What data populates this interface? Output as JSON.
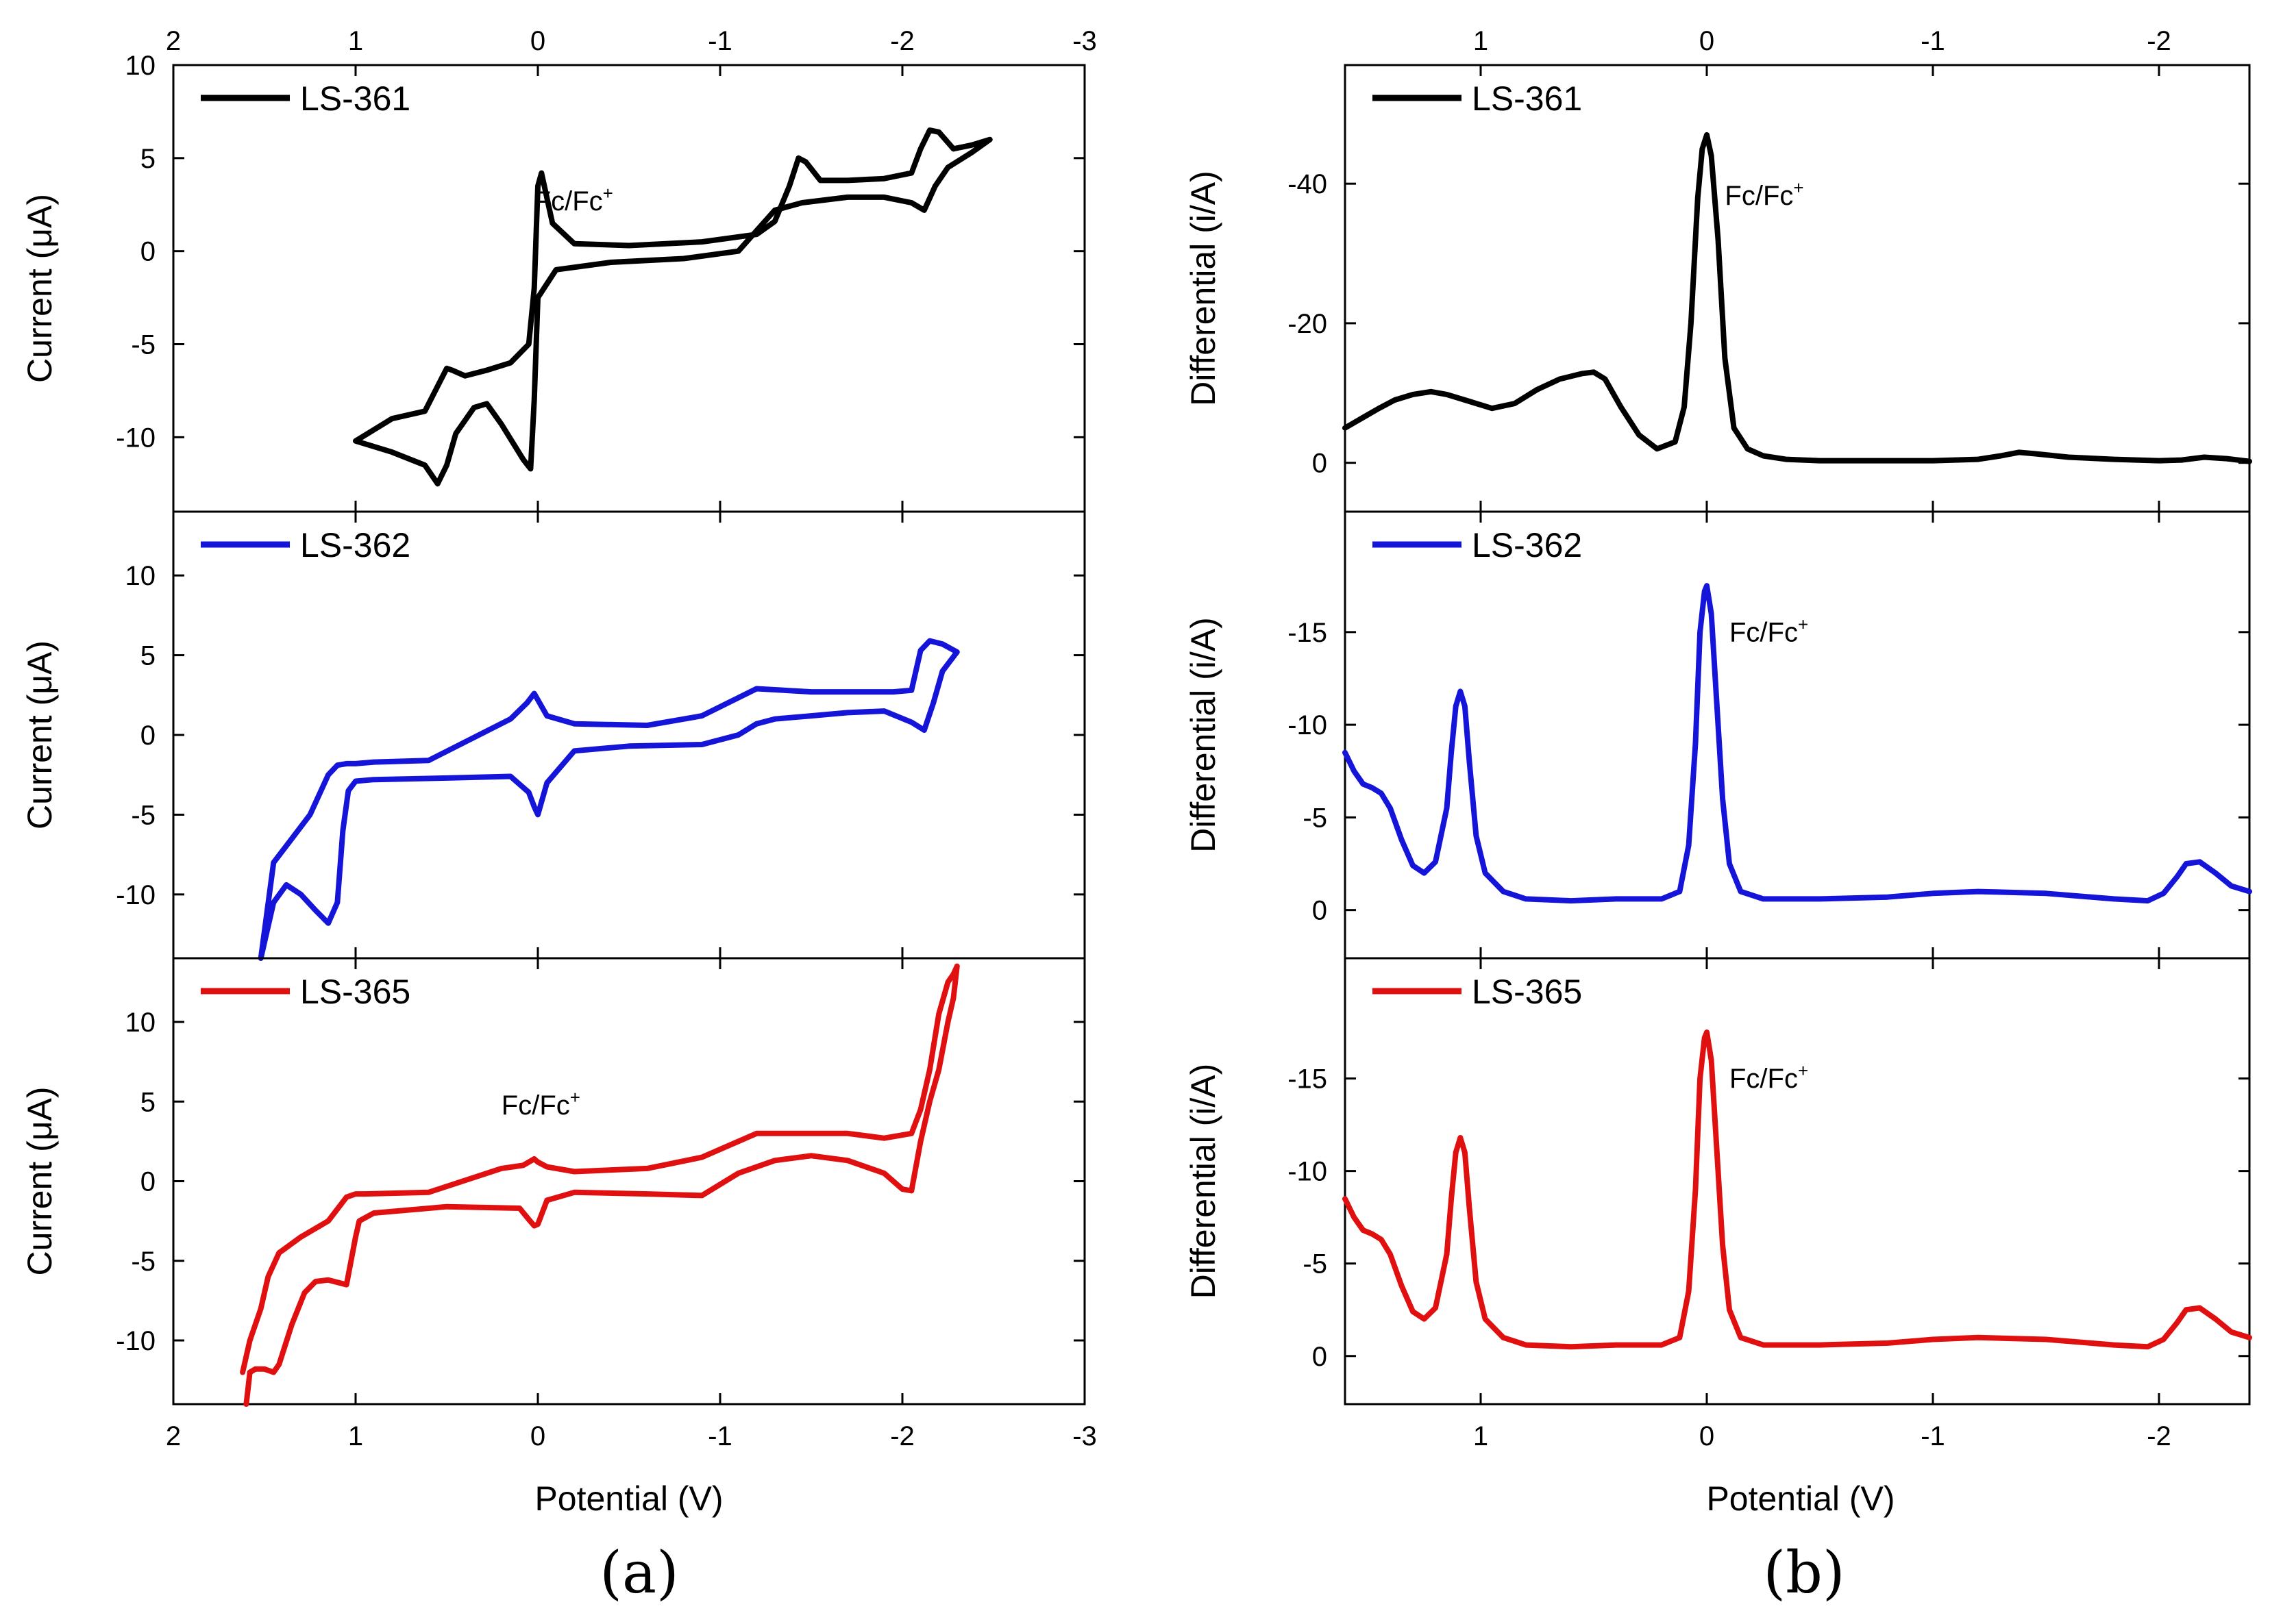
{
  "colors": {
    "black": "#000000",
    "blue": "#1515d9",
    "red": "#e01010"
  },
  "panels": {
    "a": {
      "label": "(a)",
      "xlabel": "Potential (V)",
      "ylabel": "Current (μA)"
    },
    "b": {
      "label": "(b)",
      "xlabel": "Potential (V)",
      "ylabel": "Differential (i/A)"
    }
  },
  "chart_data": [
    {
      "id": "a1",
      "type": "line",
      "panel": "a",
      "series_name": "LS-361",
      "color": "#000000",
      "xlim": [
        2,
        -3
      ],
      "ylim": [
        -14,
        10
      ],
      "xticks": [
        2,
        1,
        0,
        -1,
        -2,
        -3
      ],
      "xtick_labels": [
        "2",
        "1",
        "0",
        "-1",
        "-2",
        "-3"
      ],
      "yticks": [
        -10,
        -5,
        0,
        5,
        10
      ],
      "ytick_labels": [
        "-10",
        "-5",
        "0",
        "5",
        "10"
      ],
      "show_top_labels": true,
      "show_bottom_labels": false,
      "ylabel": "Current (μA)",
      "annotation": {
        "text": "Fc/Fc",
        "sup": "+",
        "x": 0.02,
        "y": 2.2
      },
      "x": [
        1.0,
        0.8,
        0.62,
        0.5,
        0.47,
        0.4,
        0.28,
        0.15,
        0.05,
        0.02,
        0.0,
        -0.02,
        -0.08,
        -0.2,
        -0.5,
        -0.9,
        -1.2,
        -1.3,
        -1.38,
        -1.43,
        -1.47,
        -1.55,
        -1.7,
        -1.9,
        -2.05,
        -2.1,
        -2.15,
        -2.2,
        -2.28,
        -2.38,
        -2.48,
        -2.38,
        -2.25,
        -2.18,
        -2.12,
        -2.05,
        -1.9,
        -1.7,
        -1.45,
        -1.3,
        -1.1,
        -0.8,
        -0.4,
        -0.1,
        0.0,
        0.02,
        0.04,
        0.08,
        0.2,
        0.28,
        0.35,
        0.45,
        0.5,
        0.55,
        0.62,
        0.8,
        1.0
      ],
      "y": [
        -10.2,
        -9.0,
        -8.6,
        -6.3,
        -6.4,
        -6.7,
        -6.4,
        -6.0,
        -5.0,
        -2.0,
        3.5,
        4.2,
        1.5,
        0.4,
        0.3,
        0.5,
        0.9,
        1.6,
        3.5,
        5.0,
        4.8,
        3.8,
        3.8,
        3.9,
        4.2,
        5.5,
        6.5,
        6.4,
        5.5,
        5.7,
        6.0,
        5.3,
        4.5,
        3.5,
        2.2,
        2.6,
        2.9,
        2.9,
        2.6,
        2.2,
        0.0,
        -0.4,
        -0.6,
        -1.0,
        -2.5,
        -8.0,
        -11.7,
        -11.2,
        -9.3,
        -8.2,
        -8.4,
        -9.8,
        -11.5,
        -12.5,
        -11.5,
        -10.8,
        -10.2
      ]
    },
    {
      "id": "a2",
      "type": "line",
      "panel": "a",
      "series_name": "LS-362",
      "color": "#1515d9",
      "xlim": [
        2,
        -3
      ],
      "ylim": [
        -14,
        14
      ],
      "xticks": [
        2,
        1,
        0,
        -1,
        -2,
        -3
      ],
      "xtick_labels": [
        "2",
        "1",
        "0",
        "-1",
        "-2",
        "-3"
      ],
      "yticks": [
        -10,
        -5,
        0,
        5,
        10
      ],
      "ytick_labels": [
        "-10",
        "-5",
        "0",
        "5",
        "10"
      ],
      "show_top_labels": false,
      "show_bottom_labels": false,
      "ylabel": "Current (μA)",
      "annotation": null,
      "x": [
        1.52,
        1.5,
        1.45,
        1.38,
        1.3,
        1.22,
        1.15,
        1.1,
        1.07,
        1.04,
        1.0,
        0.9,
        0.5,
        0.15,
        0.05,
        0.02,
        0.0,
        -0.05,
        -0.2,
        -0.5,
        -0.9,
        -1.1,
        -1.2,
        -1.3,
        -1.5,
        -1.7,
        -1.9,
        -2.05,
        -2.12,
        -2.17,
        -2.22,
        -2.3,
        -2.22,
        -2.15,
        -2.1,
        -2.05,
        -1.95,
        -1.8,
        -1.5,
        -1.2,
        -0.9,
        -0.6,
        -0.2,
        -0.05,
        0.0,
        0.02,
        0.06,
        0.15,
        0.6,
        0.9,
        1.0,
        1.05,
        1.1,
        1.15,
        1.25,
        1.35,
        1.45,
        1.52
      ],
      "y": [
        -14.0,
        -13.0,
        -10.5,
        -9.4,
        -10.0,
        -11.0,
        -11.8,
        -10.5,
        -6.0,
        -3.5,
        -2.9,
        -2.8,
        -2.7,
        -2.6,
        -3.6,
        -4.5,
        -5.0,
        -3.0,
        -1.0,
        -0.7,
        -0.6,
        0.0,
        0.7,
        1.0,
        1.2,
        1.4,
        1.5,
        0.8,
        0.3,
        2.0,
        4.0,
        5.2,
        5.7,
        5.9,
        5.3,
        2.8,
        2.7,
        2.7,
        2.7,
        2.9,
        1.2,
        0.6,
        0.7,
        1.2,
        2.2,
        2.6,
        2.0,
        1.0,
        -1.6,
        -1.7,
        -1.8,
        -1.8,
        -1.9,
        -2.5,
        -5.0,
        -6.5,
        -8.0,
        -14.0
      ]
    },
    {
      "id": "a3",
      "type": "line",
      "panel": "a",
      "series_name": "LS-365",
      "color": "#e01010",
      "xlim": [
        2,
        -3
      ],
      "ylim": [
        -14,
        14
      ],
      "xticks": [
        2,
        1,
        0,
        -1,
        -2,
        -3
      ],
      "xtick_labels": [
        "2",
        "1",
        "0",
        "-1",
        "-2",
        "-3"
      ],
      "yticks": [
        -10,
        -5,
        0,
        5,
        10
      ],
      "ytick_labels": [
        "-10",
        "-5",
        "0",
        "5",
        "10"
      ],
      "show_top_labels": false,
      "show_bottom_labels": true,
      "ylabel": "Current (μA)",
      "annotation": {
        "text": "Fc/Fc",
        "sup": "+",
        "x": 0.2,
        "y": 4.2
      },
      "x": [
        1.6,
        1.58,
        1.55,
        1.5,
        1.45,
        1.42,
        1.35,
        1.28,
        1.22,
        1.15,
        1.05,
        1.0,
        0.98,
        0.9,
        0.5,
        0.1,
        0.05,
        0.02,
        0.0,
        -0.05,
        -0.2,
        -0.6,
        -0.9,
        -1.1,
        -1.3,
        -1.5,
        -1.7,
        -1.9,
        -2.0,
        -2.05,
        -2.1,
        -2.15,
        -2.2,
        -2.25,
        -2.28,
        -2.3,
        -2.28,
        -2.25,
        -2.2,
        -2.15,
        -2.1,
        -2.05,
        -1.9,
        -1.7,
        -1.5,
        -1.2,
        -0.9,
        -0.6,
        -0.2,
        -0.05,
        0.0,
        0.02,
        0.08,
        0.2,
        0.6,
        0.95,
        1.0,
        1.05,
        1.15,
        1.3,
        1.42,
        1.48,
        1.52,
        1.58,
        1.62
      ],
      "y": [
        -14.0,
        -12.0,
        -11.8,
        -11.8,
        -12.0,
        -11.5,
        -9.0,
        -7.0,
        -6.3,
        -6.2,
        -6.5,
        -3.5,
        -2.5,
        -2.0,
        -1.6,
        -1.7,
        -2.4,
        -2.8,
        -2.7,
        -1.2,
        -0.7,
        -0.8,
        -0.9,
        0.5,
        1.3,
        1.6,
        1.3,
        0.5,
        -0.5,
        -0.6,
        2.5,
        5.0,
        7.0,
        10.0,
        11.5,
        13.5,
        13.0,
        12.5,
        10.5,
        7.0,
        4.5,
        3.0,
        2.7,
        3.0,
        3.0,
        3.0,
        1.5,
        0.8,
        0.6,
        0.9,
        1.2,
        1.4,
        1.0,
        0.8,
        -0.7,
        -0.8,
        -0.8,
        -1.0,
        -2.5,
        -3.5,
        -4.5,
        -6.0,
        -8.0,
        -10.0,
        -12.0
      ]
    },
    {
      "id": "b1",
      "type": "line",
      "panel": "b",
      "series_name": "LS-361",
      "color": "#000000",
      "xlim": [
        1.6,
        -2.4
      ],
      "ylim": [
        7,
        -57
      ],
      "xticks": [
        1,
        0,
        -1,
        -2
      ],
      "xtick_labels": [
        "1",
        "0",
        "-1",
        "-2"
      ],
      "yticks": [
        0,
        -20,
        -40
      ],
      "ytick_labels": [
        "0",
        "-20",
        "-40"
      ],
      "show_top_labels": true,
      "show_bottom_labels": false,
      "ylabel": "Differential (i/A)",
      "annotation": {
        "text": "Fc/Fc",
        "sup": "+",
        "x": -0.08,
        "y": -37
      },
      "x": [
        1.6,
        1.52,
        1.45,
        1.38,
        1.3,
        1.22,
        1.15,
        1.05,
        0.95,
        0.85,
        0.75,
        0.65,
        0.55,
        0.5,
        0.45,
        0.38,
        0.3,
        0.22,
        0.14,
        0.1,
        0.07,
        0.04,
        0.02,
        0.0,
        -0.02,
        -0.05,
        -0.08,
        -0.12,
        -0.18,
        -0.25,
        -0.35,
        -0.5,
        -0.7,
        -1.0,
        -1.2,
        -1.3,
        -1.38,
        -1.45,
        -1.6,
        -1.8,
        -2.0,
        -2.1,
        -2.2,
        -2.3,
        -2.4
      ],
      "y": [
        -5,
        -6.5,
        -7.8,
        -9,
        -9.8,
        -10.2,
        -9.8,
        -8.8,
        -7.8,
        -8.5,
        -10.5,
        -12,
        -12.8,
        -13,
        -12,
        -8,
        -4,
        -2,
        -3,
        -8,
        -20,
        -38,
        -45,
        -47,
        -44,
        -32,
        -15,
        -5,
        -2,
        -1,
        -0.5,
        -0.3,
        -0.3,
        -0.3,
        -0.5,
        -1,
        -1.5,
        -1.3,
        -0.8,
        -0.5,
        -0.3,
        -0.4,
        -0.8,
        -0.6,
        -0.2
      ]
    },
    {
      "id": "b2",
      "type": "line",
      "panel": "b",
      "series_name": "LS-362",
      "color": "#1515d9",
      "xlim": [
        1.6,
        -2.4
      ],
      "ylim": [
        2.6,
        -21.5
      ],
      "xticks": [
        1,
        0,
        -1,
        -2
      ],
      "xtick_labels": [
        "1",
        "0",
        "-1",
        "-2"
      ],
      "yticks": [
        0,
        -5,
        -10,
        -15
      ],
      "ytick_labels": [
        "0",
        "-5",
        "-10",
        "-15"
      ],
      "show_top_labels": false,
      "show_bottom_labels": false,
      "ylabel": "Differential (i/A)",
      "annotation": {
        "text": "Fc/Fc",
        "sup": "+",
        "x": -0.1,
        "y": -14.5
      },
      "x": [
        1.6,
        1.56,
        1.52,
        1.48,
        1.44,
        1.4,
        1.35,
        1.3,
        1.25,
        1.2,
        1.15,
        1.13,
        1.11,
        1.09,
        1.07,
        1.05,
        1.02,
        0.98,
        0.9,
        0.8,
        0.6,
        0.4,
        0.2,
        0.12,
        0.08,
        0.05,
        0.03,
        0.01,
        0.0,
        -0.02,
        -0.04,
        -0.07,
        -0.1,
        -0.15,
        -0.25,
        -0.5,
        -0.8,
        -1.0,
        -1.2,
        -1.5,
        -1.8,
        -1.95,
        -2.02,
        -2.08,
        -2.12,
        -2.18,
        -2.25,
        -2.32,
        -2.4
      ],
      "y": [
        -8.5,
        -7.5,
        -6.8,
        -6.6,
        -6.3,
        -5.5,
        -3.8,
        -2.4,
        -2.0,
        -2.6,
        -5.5,
        -8.5,
        -11.0,
        -11.8,
        -11.0,
        -8.0,
        -4.0,
        -2.0,
        -1.0,
        -0.6,
        -0.5,
        -0.6,
        -0.6,
        -1.0,
        -3.5,
        -9.0,
        -15.0,
        -17.2,
        -17.5,
        -16.0,
        -12.0,
        -6.0,
        -2.5,
        -1.0,
        -0.6,
        -0.6,
        -0.7,
        -0.9,
        -1.0,
        -0.9,
        -0.6,
        -0.5,
        -0.9,
        -1.8,
        -2.5,
        -2.6,
        -2.0,
        -1.3,
        -1.0
      ]
    },
    {
      "id": "b3",
      "type": "line",
      "panel": "b",
      "series_name": "LS-365",
      "color": "#e01010",
      "xlim": [
        1.6,
        -2.4
      ],
      "ylim": [
        2.6,
        -21.5
      ],
      "xticks": [
        1,
        0,
        -1,
        -2
      ],
      "xtick_labels": [
        "1",
        "0",
        "-1",
        "-2"
      ],
      "yticks": [
        0,
        -5,
        -10,
        -15
      ],
      "ytick_labels": [
        "0",
        "-5",
        "-10",
        "-15"
      ],
      "show_top_labels": false,
      "show_bottom_labels": true,
      "ylabel": "Differential (i/A)",
      "annotation": {
        "text": "Fc/Fc",
        "sup": "+",
        "x": -0.1,
        "y": -14.5
      },
      "x": [
        1.6,
        1.56,
        1.52,
        1.48,
        1.44,
        1.4,
        1.35,
        1.3,
        1.25,
        1.2,
        1.15,
        1.13,
        1.11,
        1.09,
        1.07,
        1.05,
        1.02,
        0.98,
        0.9,
        0.8,
        0.6,
        0.4,
        0.2,
        0.12,
        0.08,
        0.05,
        0.03,
        0.01,
        0.0,
        -0.02,
        -0.04,
        -0.07,
        -0.1,
        -0.15,
        -0.25,
        -0.5,
        -0.8,
        -1.0,
        -1.2,
        -1.5,
        -1.8,
        -1.95,
        -2.02,
        -2.08,
        -2.12,
        -2.18,
        -2.25,
        -2.32,
        -2.4
      ],
      "y": [
        -8.5,
        -7.5,
        -6.8,
        -6.6,
        -6.3,
        -5.5,
        -3.8,
        -2.4,
        -2.0,
        -2.6,
        -5.5,
        -8.5,
        -11.0,
        -11.8,
        -11.0,
        -8.0,
        -4.0,
        -2.0,
        -1.0,
        -0.6,
        -0.5,
        -0.6,
        -0.6,
        -1.0,
        -3.5,
        -9.0,
        -15.0,
        -17.2,
        -17.5,
        -16.0,
        -12.0,
        -6.0,
        -2.5,
        -1.0,
        -0.6,
        -0.6,
        -0.7,
        -0.9,
        -1.0,
        -0.9,
        -0.6,
        -0.5,
        -0.9,
        -1.8,
        -2.5,
        -2.6,
        -2.0,
        -1.3,
        -1.0
      ]
    }
  ]
}
